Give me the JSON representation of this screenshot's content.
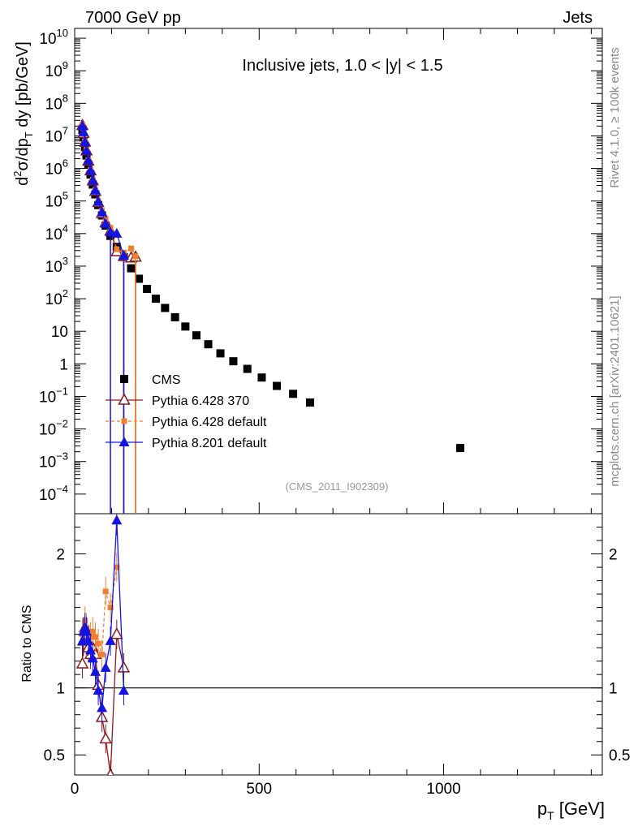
{
  "chart_data": [
    {
      "type": "scatter",
      "header_left": "7000 GeV pp",
      "header_right": "Jets",
      "title": "Inclusive jets, 1.0 < |y| < 1.5",
      "ylabel": "d²σ/dp_T dy [pb/GeV]",
      "yscale": "log",
      "xlim": [
        0,
        1430
      ],
      "ylim": [
        2.5e-05,
        20000000000.0
      ],
      "y_ticks": [
        {
          "value": 10000000000.0,
          "label": "10^10"
        },
        {
          "value": 1000000000.0,
          "label": "10^9"
        },
        {
          "value": 100000000.0,
          "label": "10^8"
        },
        {
          "value": 10000000.0,
          "label": "10^7"
        },
        {
          "value": 1000000.0,
          "label": "10^6"
        },
        {
          "value": 100000.0,
          "label": "10^5"
        },
        {
          "value": 10000.0,
          "label": "10^4"
        },
        {
          "value": 1000.0,
          "label": "10^3"
        },
        {
          "value": 100.0,
          "label": "10^2"
        },
        {
          "value": 10,
          "label": "10"
        },
        {
          "value": 1,
          "label": "1"
        },
        {
          "value": 0.1,
          "label": "10^−1"
        },
        {
          "value": 0.01,
          "label": "10^−2"
        },
        {
          "value": 0.001,
          "label": "10^−3"
        },
        {
          "value": 0.0001,
          "label": "10^−4"
        }
      ],
      "side_text_1": "Rivet 4.1.0, ≥ 100k events",
      "side_text_2": "mcplots.cern.ch [arXiv:2401.10621]",
      "analysis_label": "(CMS_2011_I902309)",
      "series": [
        {
          "name": "CMS",
          "color": "#000000",
          "marker": "square",
          "x": [
            21,
            24,
            28,
            32,
            37,
            43,
            49,
            56,
            64,
            74,
            84,
            97,
            114,
            133,
            153,
            174,
            196,
            220,
            245,
            272,
            300,
            330,
            362,
            395,
            430,
            468,
            507,
            548,
            592,
            638,
            1045
          ],
          "y": [
            15000000.0,
            9000000.0,
            4500000.0,
            2500000.0,
            1300000.0,
            650000.0,
            320000.0,
            160000.0,
            75000.0,
            36000.0,
            17500.0,
            8500.0,
            3900.0,
            1900.0,
            860,
            410,
            200,
            100,
            52,
            27,
            14,
            7.5,
            4,
            2.1,
            1.2,
            0.7,
            0.38,
            0.21,
            0.12,
            0.065,
            0.0026
          ]
        },
        {
          "name": "Pythia 6.428 370",
          "color": "#8b1a1a",
          "marker": "triangle-open",
          "x": [
            21,
            24,
            28,
            32,
            37,
            43,
            49,
            56,
            64,
            74,
            84,
            97,
            114,
            133,
            153,
            165
          ],
          "y": [
            21000000.0,
            12000000.0,
            6500000.0,
            3500000.0,
            1700000.0,
            850000.0,
            420000.0,
            200000.0,
            90000.0,
            42000.0,
            22000.0,
            12000.0,
            2800.0,
            2000.0,
            1800.0,
            1900.0
          ]
        },
        {
          "name": "Pythia 6.428 default",
          "color": "#f08030",
          "marker": "square-small",
          "x": [
            21,
            24,
            28,
            32,
            37,
            43,
            49,
            56,
            64,
            74,
            84,
            97,
            114,
            133,
            153,
            165
          ],
          "y": [
            22000000.0,
            13000000.0,
            6800000.0,
            3700000.0,
            1800000.0,
            900000.0,
            450000.0,
            220000.0,
            100000.0,
            50000.0,
            26000.0,
            15000.0,
            3300.0,
            2600.0,
            3500.0,
            2000.0
          ]
        },
        {
          "name": "Pythia 8.201 default",
          "color": "#1414e0",
          "marker": "triangle",
          "x": [
            21,
            24,
            28,
            32,
            37,
            43,
            49,
            56,
            64,
            74,
            84,
            97,
            114,
            133
          ],
          "y": [
            20000000.0,
            13000000.0,
            6500000.0,
            3500000.0,
            1750000.0,
            850000.0,
            430000.0,
            210000.0,
            95000.0,
            45000.0,
            20000.0,
            11000.0,
            10000.0,
            2100.0
          ]
        }
      ]
    },
    {
      "type": "scatter",
      "ylabel": "Ratio to CMS",
      "xlabel": "p_T [GeV]",
      "xlim": [
        0,
        1430
      ],
      "ylim": [
        0.35,
        2.3
      ],
      "x_ticks": [
        0,
        500,
        1000
      ],
      "y_ticks": [
        {
          "value": 0.5,
          "label": "0.5"
        },
        {
          "value": 1,
          "label": "1"
        },
        {
          "value": 2,
          "label": "2"
        }
      ],
      "reference_line": 1,
      "series": [
        {
          "name": "Pythia 6.428 370",
          "color": "#8b1a1a",
          "marker": "triangle-open",
          "x": [
            21,
            24,
            28,
            32,
            37,
            43,
            49,
            56,
            64,
            74,
            84,
            97,
            114,
            133
          ],
          "y": [
            1.18,
            1.35,
            1.45,
            1.4,
            1.3,
            1.25,
            1.3,
            1.25,
            1.02,
            0.78,
            0.62,
            0.35,
            1.4,
            1.15
          ]
        },
        {
          "name": "Pythia 6.428 default",
          "color": "#f08030",
          "marker": "square-small",
          "x": [
            21,
            24,
            28,
            32,
            37,
            43,
            49,
            56,
            64,
            74,
            84,
            97,
            114
          ],
          "y": [
            1.4,
            1.42,
            1.5,
            1.45,
            1.35,
            1.38,
            1.42,
            1.38,
            1.33,
            1.25,
            1.72,
            1.6,
            1.9
          ]
        },
        {
          "name": "Pythia 8.201 default",
          "color": "#1414e0",
          "marker": "triangle",
          "x": [
            21,
            24,
            28,
            32,
            37,
            43,
            49,
            56,
            64,
            74,
            84,
            97,
            114,
            133
          ],
          "y": [
            1.35,
            1.42,
            1.45,
            1.42,
            1.35,
            1.28,
            1.22,
            1.12,
            0.98,
            0.85,
            1.15,
            1.35,
            2.25,
            0.98
          ]
        }
      ]
    }
  ]
}
